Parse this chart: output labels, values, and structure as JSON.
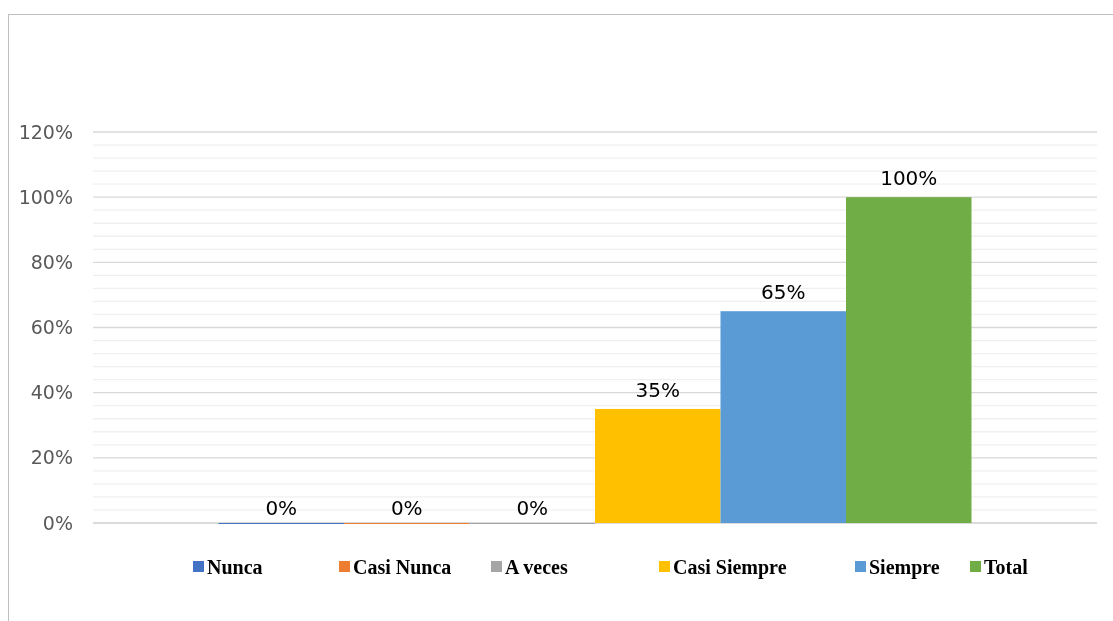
{
  "chart_data": {
    "type": "bar",
    "categories": [
      null
    ],
    "series": [
      {
        "name": "Nunca",
        "color": "#4472c4",
        "values": [
          0
        ],
        "value_labels": [
          "0%"
        ]
      },
      {
        "name": "Casi Nunca",
        "color": "#ed7d31",
        "values": [
          0
        ],
        "value_labels": [
          "0%"
        ]
      },
      {
        "name": "A veces",
        "color": "#a5a5a5",
        "values": [
          0
        ],
        "value_labels": [
          "0%"
        ]
      },
      {
        "name": "Casi Siempre",
        "color": "#ffc000",
        "values": [
          35
        ],
        "value_labels": [
          "35%"
        ]
      },
      {
        "name": "Siempre",
        "color": "#5b9bd5",
        "values": [
          65
        ],
        "value_labels": [
          "65%"
        ]
      },
      {
        "name": "Total",
        "color": "#70ad47",
        "values": [
          100
        ],
        "value_labels": [
          "100%"
        ]
      }
    ],
    "ylim": [
      0,
      120
    ],
    "yticks": [
      {
        "value": 0,
        "label": "0%"
      },
      {
        "value": 4,
        "label": null
      },
      {
        "value": 8,
        "label": null
      },
      {
        "value": 12,
        "label": null
      },
      {
        "value": 16,
        "label": null
      },
      {
        "value": 20,
        "label": "20%"
      },
      {
        "value": 24,
        "label": null
      },
      {
        "value": 28,
        "label": null
      },
      {
        "value": 32,
        "label": null
      },
      {
        "value": 36,
        "label": null
      },
      {
        "value": 40,
        "label": "40%"
      },
      {
        "value": 44,
        "label": null
      },
      {
        "value": 48,
        "label": null
      },
      {
        "value": 52,
        "label": null
      },
      {
        "value": 56,
        "label": null
      },
      {
        "value": 60,
        "label": "60%"
      },
      {
        "value": 64,
        "label": null
      },
      {
        "value": 68,
        "label": null
      },
      {
        "value": 72,
        "label": null
      },
      {
        "value": 76,
        "label": null
      },
      {
        "value": 80,
        "label": "80%"
      },
      {
        "value": 84,
        "label": null
      },
      {
        "value": 88,
        "label": null
      },
      {
        "value": 92,
        "label": null
      },
      {
        "value": 96,
        "label": null
      },
      {
        "value": 100,
        "label": "100%"
      },
      {
        "value": 104,
        "label": null
      },
      {
        "value": 108,
        "label": null
      },
      {
        "value": 112,
        "label": null
      },
      {
        "value": 116,
        "label": null
      },
      {
        "value": 120,
        "label": "120%"
      }
    ],
    "grid": true,
    "legend": "bottom"
  }
}
